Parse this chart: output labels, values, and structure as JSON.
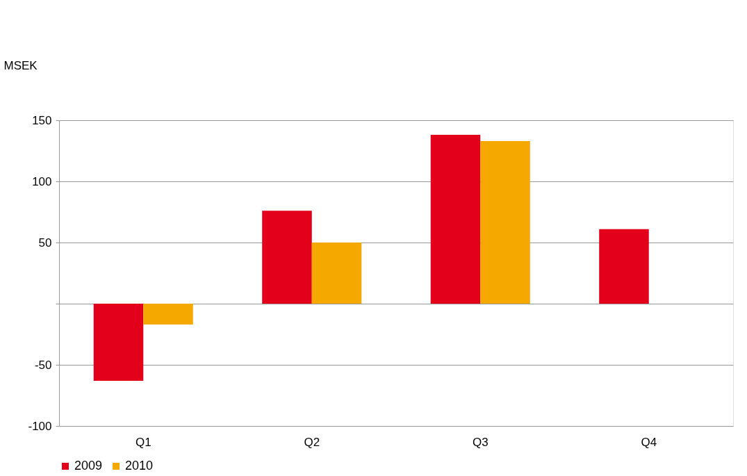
{
  "chart_data": {
    "type": "bar",
    "ylabel": "MSEK",
    "categories": [
      "Q1",
      "Q2",
      "Q3",
      "Q4"
    ],
    "series": [
      {
        "name": "2009",
        "color": "#e2001a",
        "values": [
          -63,
          76,
          138,
          61
        ]
      },
      {
        "name": "2010",
        "color": "#f5a800",
        "values": [
          -17,
          50,
          133,
          null
        ]
      }
    ],
    "ylim": [
      -100,
      150
    ],
    "yticks": [
      -100,
      -50,
      {
        "value": 0,
        "label": null
      },
      50,
      100,
      150
    ],
    "grid": "y",
    "legend": "bottom"
  }
}
